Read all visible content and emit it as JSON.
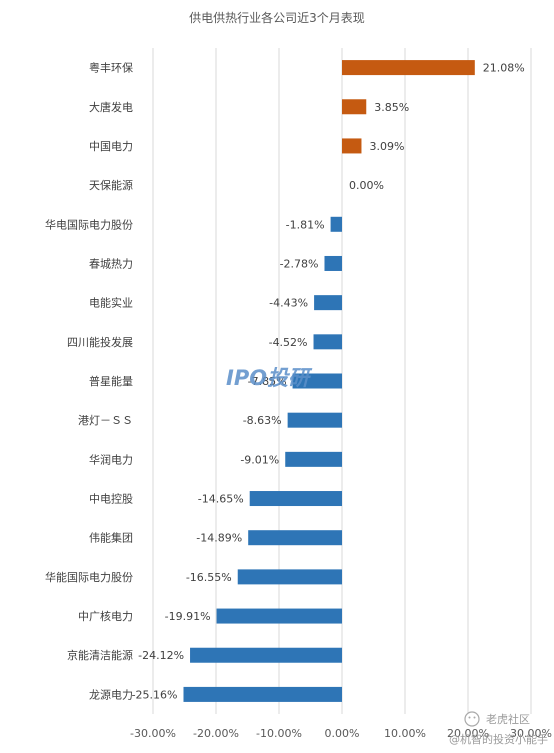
{
  "chart_data": {
    "type": "bar",
    "orientation": "horizontal",
    "title": "供电供热行业各公司近3个月表现",
    "categories": [
      "粤丰环保",
      "大唐发电",
      "中国电力",
      "天保能源",
      "华电国际电力股份",
      "春城热力",
      "电能实业",
      "四川能投发展",
      "普星能量",
      "港灯－ＳＳ",
      "华润电力",
      "中电控股",
      "伟能集团",
      "华能国际电力股份",
      "中广核电力",
      "京能清洁能源",
      "龙源电力"
    ],
    "values": [
      21.08,
      3.85,
      3.09,
      0.0,
      -1.81,
      -2.78,
      -4.43,
      -4.52,
      -7.85,
      -8.63,
      -9.01,
      -14.65,
      -14.89,
      -16.55,
      -19.91,
      -24.12,
      -25.16
    ],
    "value_labels": [
      "21.08%",
      "3.85%",
      "3.09%",
      "0.00%",
      "-1.81%",
      "-2.78%",
      "-4.43%",
      "-4.52%",
      "-7.85%",
      "-8.63%",
      "-9.01%",
      "-14.65%",
      "-14.89%",
      "-16.55%",
      "-19.91%",
      "-24.12%",
      "-25.16%"
    ],
    "xlim": [
      -30,
      30
    ],
    "x_ticks": [
      -30,
      -20,
      -10,
      0,
      10,
      20,
      30
    ],
    "x_tick_labels": [
      "-30.00%",
      "-20.00%",
      "-10.00%",
      "0.00%",
      "10.00%",
      "20.00%",
      "30.00%"
    ],
    "grid": "vertical",
    "colors": {
      "positive": "#c55a11",
      "negative": "#2e75b6"
    },
    "xlabel": "",
    "ylabel": ""
  },
  "watermark": {
    "text": "IPO投研",
    "site": "老虎社区",
    "handle": "@机智的投资小能手"
  }
}
